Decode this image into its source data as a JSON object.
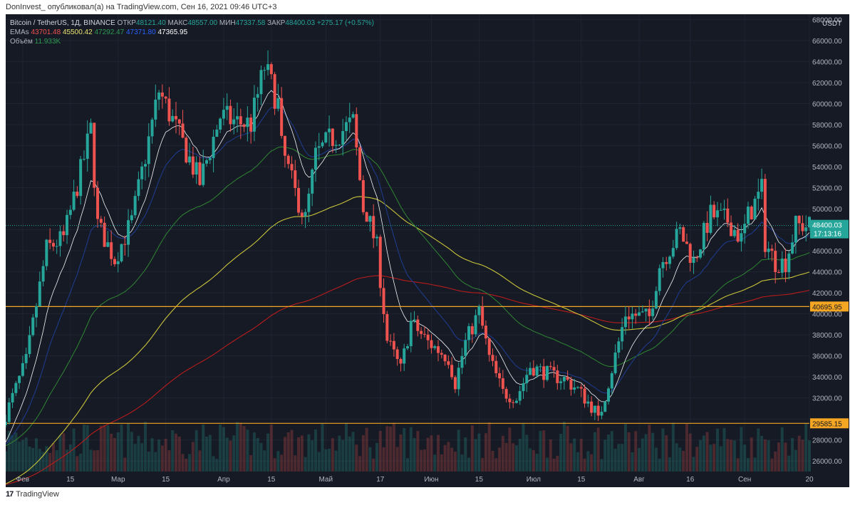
{
  "attribution": "DonInvest_ опубликовал(а) на TradingView.com, Сен 16, 2021 09:46 UTC+3",
  "footer_brand": "TradingView",
  "footer_logo": "tv-logo",
  "legend": {
    "symbol": "Bitcoin / TetherUS, 1Д, BINANCE",
    "open_label": "ОТКР",
    "open": "48121.40",
    "high_label": "МАКС",
    "high": "48557.00",
    "low_label": "МИН",
    "low": "47337.58",
    "close_label": "ЗАКР",
    "close": "48400.03",
    "change": "+275.17 (+0.57%)",
    "ema_label": "EMAs",
    "ema_values": [
      "43701.48",
      "45500.42",
      "47292.47",
      "47371.80",
      "47365.95"
    ],
    "volume_label": "Объём",
    "volume": "11.933K"
  },
  "colors": {
    "background": "#161a25",
    "up": "#26a69a",
    "down": "#ef5350",
    "ema200": "#b71c1c",
    "ema100": "#c9c43a",
    "ema50": "#2e7d32",
    "ema20": "#1e3a8a",
    "ema10": "#f5f5f5",
    "level": "#f5a623",
    "price_line": "#26a69a"
  },
  "chart_data": {
    "type": "candlestick",
    "currency": "USDT",
    "y_range": [
      25000,
      68500
    ],
    "y_ticks": [
      26000,
      28000,
      30000,
      32000,
      34000,
      36000,
      38000,
      40000,
      42000,
      44000,
      46000,
      48000,
      50000,
      52000,
      54000,
      56000,
      58000,
      60000,
      62000,
      64000,
      66000,
      68000
    ],
    "y_tick_labels": [
      "26000.00",
      "28000.00",
      "30000.00",
      "32000.00",
      "34000.00",
      "36000.00",
      "38000.00",
      "40000.00",
      "42000.00",
      "44000.00",
      "46000.00",
      "48000.00",
      "50000.00",
      "52000.00",
      "54000.00",
      "56000.00",
      "58000.00",
      "60000.00",
      "62000.00",
      "64000.00",
      "66000.00",
      "68000.00"
    ],
    "x_start": "2021-01-27",
    "x_end": "2021-09-20",
    "x_ticks": [
      {
        "date": "2021-02-01",
        "label": "Фев"
      },
      {
        "date": "2021-02-15",
        "label": "15"
      },
      {
        "date": "2021-03-01",
        "label": "Мар"
      },
      {
        "date": "2021-03-15",
        "label": "15"
      },
      {
        "date": "2021-04-01",
        "label": "Апр"
      },
      {
        "date": "2021-04-15",
        "label": "15"
      },
      {
        "date": "2021-05-01",
        "label": "Май"
      },
      {
        "date": "2021-05-17",
        "label": "17"
      },
      {
        "date": "2021-06-01",
        "label": "Июн"
      },
      {
        "date": "2021-06-15",
        "label": "15"
      },
      {
        "date": "2021-07-01",
        "label": "Июл"
      },
      {
        "date": "2021-07-15",
        "label": "15"
      },
      {
        "date": "2021-08-01",
        "label": "Авг"
      },
      {
        "date": "2021-08-16",
        "label": "16"
      },
      {
        "date": "2021-09-01",
        "label": "Сен"
      },
      {
        "date": "2021-09-20",
        "label": "20"
      }
    ],
    "close_anchors": [
      [
        "2021-01-27",
        30400
      ],
      [
        "2021-02-02",
        35500
      ],
      [
        "2021-02-08",
        46200
      ],
      [
        "2021-02-13",
        47200
      ],
      [
        "2021-02-17",
        52200
      ],
      [
        "2021-02-21",
        57500
      ],
      [
        "2021-02-23",
        48500
      ],
      [
        "2021-02-28",
        45200
      ],
      [
        "2021-03-05",
        48800
      ],
      [
        "2021-03-13",
        61200
      ],
      [
        "2021-03-17",
        58400
      ],
      [
        "2021-03-25",
        52500
      ],
      [
        "2021-03-31",
        58800
      ],
      [
        "2021-04-05",
        58200
      ],
      [
        "2021-04-09",
        58100
      ],
      [
        "2021-04-13",
        63500
      ],
      [
        "2021-04-17",
        60000
      ],
      [
        "2021-04-18",
        55800
      ],
      [
        "2021-04-22",
        51500
      ],
      [
        "2021-04-25",
        49000
      ],
      [
        "2021-04-28",
        55000
      ],
      [
        "2021-05-02",
        56500
      ],
      [
        "2021-05-09",
        58200
      ],
      [
        "2021-05-12",
        50000
      ],
      [
        "2021-05-13",
        49600
      ],
      [
        "2021-05-16",
        46300
      ],
      [
        "2021-05-19",
        37500
      ],
      [
        "2021-05-23",
        34700
      ],
      [
        "2021-05-26",
        39200
      ],
      [
        "2021-05-31",
        37300
      ],
      [
        "2021-06-06",
        35800
      ],
      [
        "2021-06-08",
        33400
      ],
      [
        "2021-06-11",
        37300
      ],
      [
        "2021-06-15",
        40200
      ],
      [
        "2021-06-18",
        35800
      ],
      [
        "2021-06-22",
        32500
      ],
      [
        "2021-06-26",
        32000
      ],
      [
        "2021-06-30",
        35000
      ],
      [
        "2021-07-06",
        34200
      ],
      [
        "2021-07-10",
        33800
      ],
      [
        "2021-07-14",
        32800
      ],
      [
        "2021-07-19",
        30800
      ],
      [
        "2021-07-20",
        29800
      ],
      [
        "2021-07-22",
        32200
      ],
      [
        "2021-07-26",
        37300
      ],
      [
        "2021-07-28",
        40000
      ],
      [
        "2021-08-01",
        39800
      ],
      [
        "2021-08-04",
        39700
      ],
      [
        "2021-08-07",
        44600
      ],
      [
        "2021-08-13",
        47800
      ],
      [
        "2021-08-17",
        45000
      ],
      [
        "2021-08-22",
        49400
      ],
      [
        "2021-08-27",
        48900
      ],
      [
        "2021-08-31",
        47100
      ],
      [
        "2021-09-02",
        49300
      ],
      [
        "2021-09-06",
        51800
      ],
      [
        "2021-09-07",
        46800
      ],
      [
        "2021-09-10",
        44900
      ],
      [
        "2021-09-13",
        44900
      ],
      [
        "2021-09-16",
        48400
      ]
    ],
    "horizontal_levels": [
      {
        "value": 40695.95,
        "label": "40695.95"
      },
      {
        "value": 29585.15,
        "label": "29585.15"
      }
    ],
    "last_price": {
      "value": 48400.03,
      "label": "48400.03",
      "countdown": "17:13:16"
    }
  }
}
